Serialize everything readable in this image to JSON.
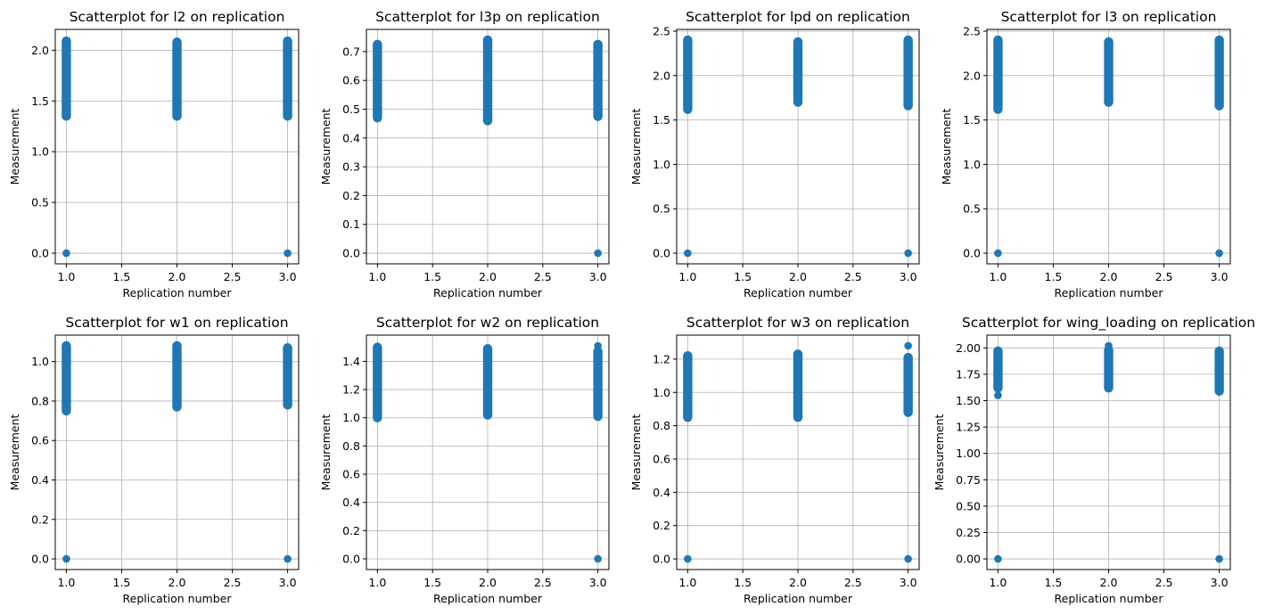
{
  "chart_data": [
    {
      "type": "scatter",
      "title": "Scatterplot for l2 on replication",
      "xlabel": "Replication number",
      "ylabel": "Measurement",
      "xlim": [
        0.9,
        3.1
      ],
      "ylim": [
        -0.105,
        2.205
      ],
      "xticks": [
        "1.0",
        "1.5",
        "2.0",
        "2.5",
        "3.0"
      ],
      "yticks": [
        "0.0",
        "0.5",
        "1.0",
        "1.5",
        "2.0"
      ],
      "grid": true,
      "marker_color": "#1f77b4",
      "series": [
        {
          "points": [
            {
              "x": 1,
              "y": 0
            },
            {
              "x": 3,
              "y": 0
            }
          ],
          "ranges": [
            {
              "x": 1,
              "y_min": 1.35,
              "y_max": 2.09
            },
            {
              "x": 2,
              "y_min": 1.35,
              "y_max": 2.08
            },
            {
              "x": 3,
              "y_min": 1.35,
              "y_max": 2.09
            }
          ]
        }
      ]
    },
    {
      "type": "scatter",
      "title": "Scatterplot for l3p on replication",
      "xlabel": "Replication number",
      "ylabel": "Measurement",
      "xlim": [
        0.9,
        3.1
      ],
      "ylim": [
        -0.037,
        0.777
      ],
      "xticks": [
        "1.0",
        "1.5",
        "2.0",
        "2.5",
        "3.0"
      ],
      "yticks": [
        "0.0",
        "0.1",
        "0.2",
        "0.3",
        "0.4",
        "0.5",
        "0.6",
        "0.7"
      ],
      "grid": true,
      "marker_color": "#1f77b4",
      "series": [
        {
          "points": [
            {
              "x": 3,
              "y": 0
            }
          ],
          "ranges": [
            {
              "x": 1,
              "y_min": 0.47,
              "y_max": 0.725
            },
            {
              "x": 2,
              "y_min": 0.46,
              "y_max": 0.74
            },
            {
              "x": 3,
              "y_min": 0.475,
              "y_max": 0.725
            }
          ]
        }
      ]
    },
    {
      "type": "scatter",
      "title": "Scatterplot for lpd on replication",
      "xlabel": "Replication number",
      "ylabel": "Measurement",
      "xlim": [
        0.9,
        3.1
      ],
      "ylim": [
        -0.12,
        2.52
      ],
      "xticks": [
        "1.0",
        "1.5",
        "2.0",
        "2.5",
        "3.0"
      ],
      "yticks": [
        "0.0",
        "0.5",
        "1.0",
        "1.5",
        "2.0",
        "2.5"
      ],
      "grid": true,
      "marker_color": "#1f77b4",
      "series": [
        {
          "points": [
            {
              "x": 1,
              "y": 0
            },
            {
              "x": 3,
              "y": 0
            }
          ],
          "ranges": [
            {
              "x": 1,
              "y_min": 1.62,
              "y_max": 2.4
            },
            {
              "x": 2,
              "y_min": 1.7,
              "y_max": 2.38
            },
            {
              "x": 3,
              "y_min": 1.66,
              "y_max": 2.4
            }
          ]
        }
      ]
    },
    {
      "type": "scatter",
      "title": "Scatterplot for l3 on replication",
      "xlabel": "Replication number",
      "ylabel": "Measurement",
      "xlim": [
        0.9,
        3.1
      ],
      "ylim": [
        -0.12,
        2.52
      ],
      "xticks": [
        "1.0",
        "1.5",
        "2.0",
        "2.5",
        "3.0"
      ],
      "yticks": [
        "0.0",
        "0.5",
        "1.0",
        "1.5",
        "2.0",
        "2.5"
      ],
      "grid": true,
      "marker_color": "#1f77b4",
      "series": [
        {
          "points": [
            {
              "x": 1,
              "y": 0
            },
            {
              "x": 3,
              "y": 0
            }
          ],
          "ranges": [
            {
              "x": 1,
              "y_min": 1.62,
              "y_max": 2.4
            },
            {
              "x": 2,
              "y_min": 1.7,
              "y_max": 2.38
            },
            {
              "x": 3,
              "y_min": 1.66,
              "y_max": 2.4
            }
          ]
        }
      ]
    },
    {
      "type": "scatter",
      "title": "Scatterplot for w1 on replication",
      "xlabel": "Replication number",
      "ylabel": "Measurement",
      "xlim": [
        0.9,
        3.1
      ],
      "ylim": [
        -0.054,
        1.134
      ],
      "xticks": [
        "1.0",
        "1.5",
        "2.0",
        "2.5",
        "3.0"
      ],
      "yticks": [
        "0.0",
        "0.2",
        "0.4",
        "0.6",
        "0.8",
        "1.0"
      ],
      "grid": true,
      "marker_color": "#1f77b4",
      "series": [
        {
          "points": [
            {
              "x": 1,
              "y": 0
            },
            {
              "x": 3,
              "y": 0
            }
          ],
          "ranges": [
            {
              "x": 1,
              "y_min": 0.75,
              "y_max": 1.08
            },
            {
              "x": 2,
              "y_min": 0.77,
              "y_max": 1.08
            },
            {
              "x": 3,
              "y_min": 0.78,
              "y_max": 1.07
            }
          ]
        }
      ]
    },
    {
      "type": "scatter",
      "title": "Scatterplot for w2 on replication",
      "xlabel": "Replication number",
      "ylabel": "Measurement",
      "xlim": [
        0.9,
        3.1
      ],
      "ylim": [
        -0.076,
        1.586
      ],
      "xticks": [
        "1.0",
        "1.5",
        "2.0",
        "2.5",
        "3.0"
      ],
      "yticks": [
        "0.0",
        "0.2",
        "0.4",
        "0.6",
        "0.8",
        "1.0",
        "1.2",
        "1.4"
      ],
      "grid": true,
      "marker_color": "#1f77b4",
      "series": [
        {
          "points": [
            {
              "x": 3,
              "y": 0
            },
            {
              "x": 3,
              "y": 1.51
            }
          ],
          "ranges": [
            {
              "x": 1,
              "y_min": 1.0,
              "y_max": 1.5
            },
            {
              "x": 2,
              "y_min": 1.02,
              "y_max": 1.49
            },
            {
              "x": 3,
              "y_min": 1.01,
              "y_max": 1.47
            }
          ]
        }
      ]
    },
    {
      "type": "scatter",
      "title": "Scatterplot for w3 on replication",
      "xlabel": "Replication number",
      "ylabel": "Measurement",
      "xlim": [
        0.9,
        3.1
      ],
      "ylim": [
        -0.064,
        1.344
      ],
      "xticks": [
        "1.0",
        "1.5",
        "2.0",
        "2.5",
        "3.0"
      ],
      "yticks": [
        "0.0",
        "0.2",
        "0.4",
        "0.6",
        "0.8",
        "1.0",
        "1.2"
      ],
      "grid": true,
      "marker_color": "#1f77b4",
      "series": [
        {
          "points": [
            {
              "x": 1,
              "y": 0
            },
            {
              "x": 3,
              "y": 0
            },
            {
              "x": 3,
              "y": 1.28
            }
          ],
          "ranges": [
            {
              "x": 1,
              "y_min": 0.85,
              "y_max": 1.22
            },
            {
              "x": 2,
              "y_min": 0.85,
              "y_max": 1.23
            },
            {
              "x": 3,
              "y_min": 0.88,
              "y_max": 1.21
            }
          ]
        }
      ]
    },
    {
      "type": "scatter",
      "title": "Scatterplot for wing_loading on replication",
      "xlabel": "Replication number",
      "ylabel": "Measurement",
      "xlim": [
        0.9,
        3.1
      ],
      "ylim": [
        -0.101,
        2.121
      ],
      "xticks": [
        "1.0",
        "1.5",
        "2.0",
        "2.5",
        "3.0"
      ],
      "yticks": [
        "0.00",
        "0.25",
        "0.50",
        "0.75",
        "1.00",
        "1.25",
        "1.50",
        "1.75",
        "2.00"
      ],
      "grid": true,
      "marker_color": "#1f77b4",
      "series": [
        {
          "points": [
            {
              "x": 1,
              "y": 0
            },
            {
              "x": 3,
              "y": 0
            },
            {
              "x": 1,
              "y": 1.55
            },
            {
              "x": 2,
              "y": 2.02
            }
          ],
          "ranges": [
            {
              "x": 1,
              "y_min": 1.62,
              "y_max": 1.97
            },
            {
              "x": 2,
              "y_min": 1.62,
              "y_max": 1.98
            },
            {
              "x": 3,
              "y_min": 1.59,
              "y_max": 1.97
            }
          ]
        }
      ]
    }
  ]
}
